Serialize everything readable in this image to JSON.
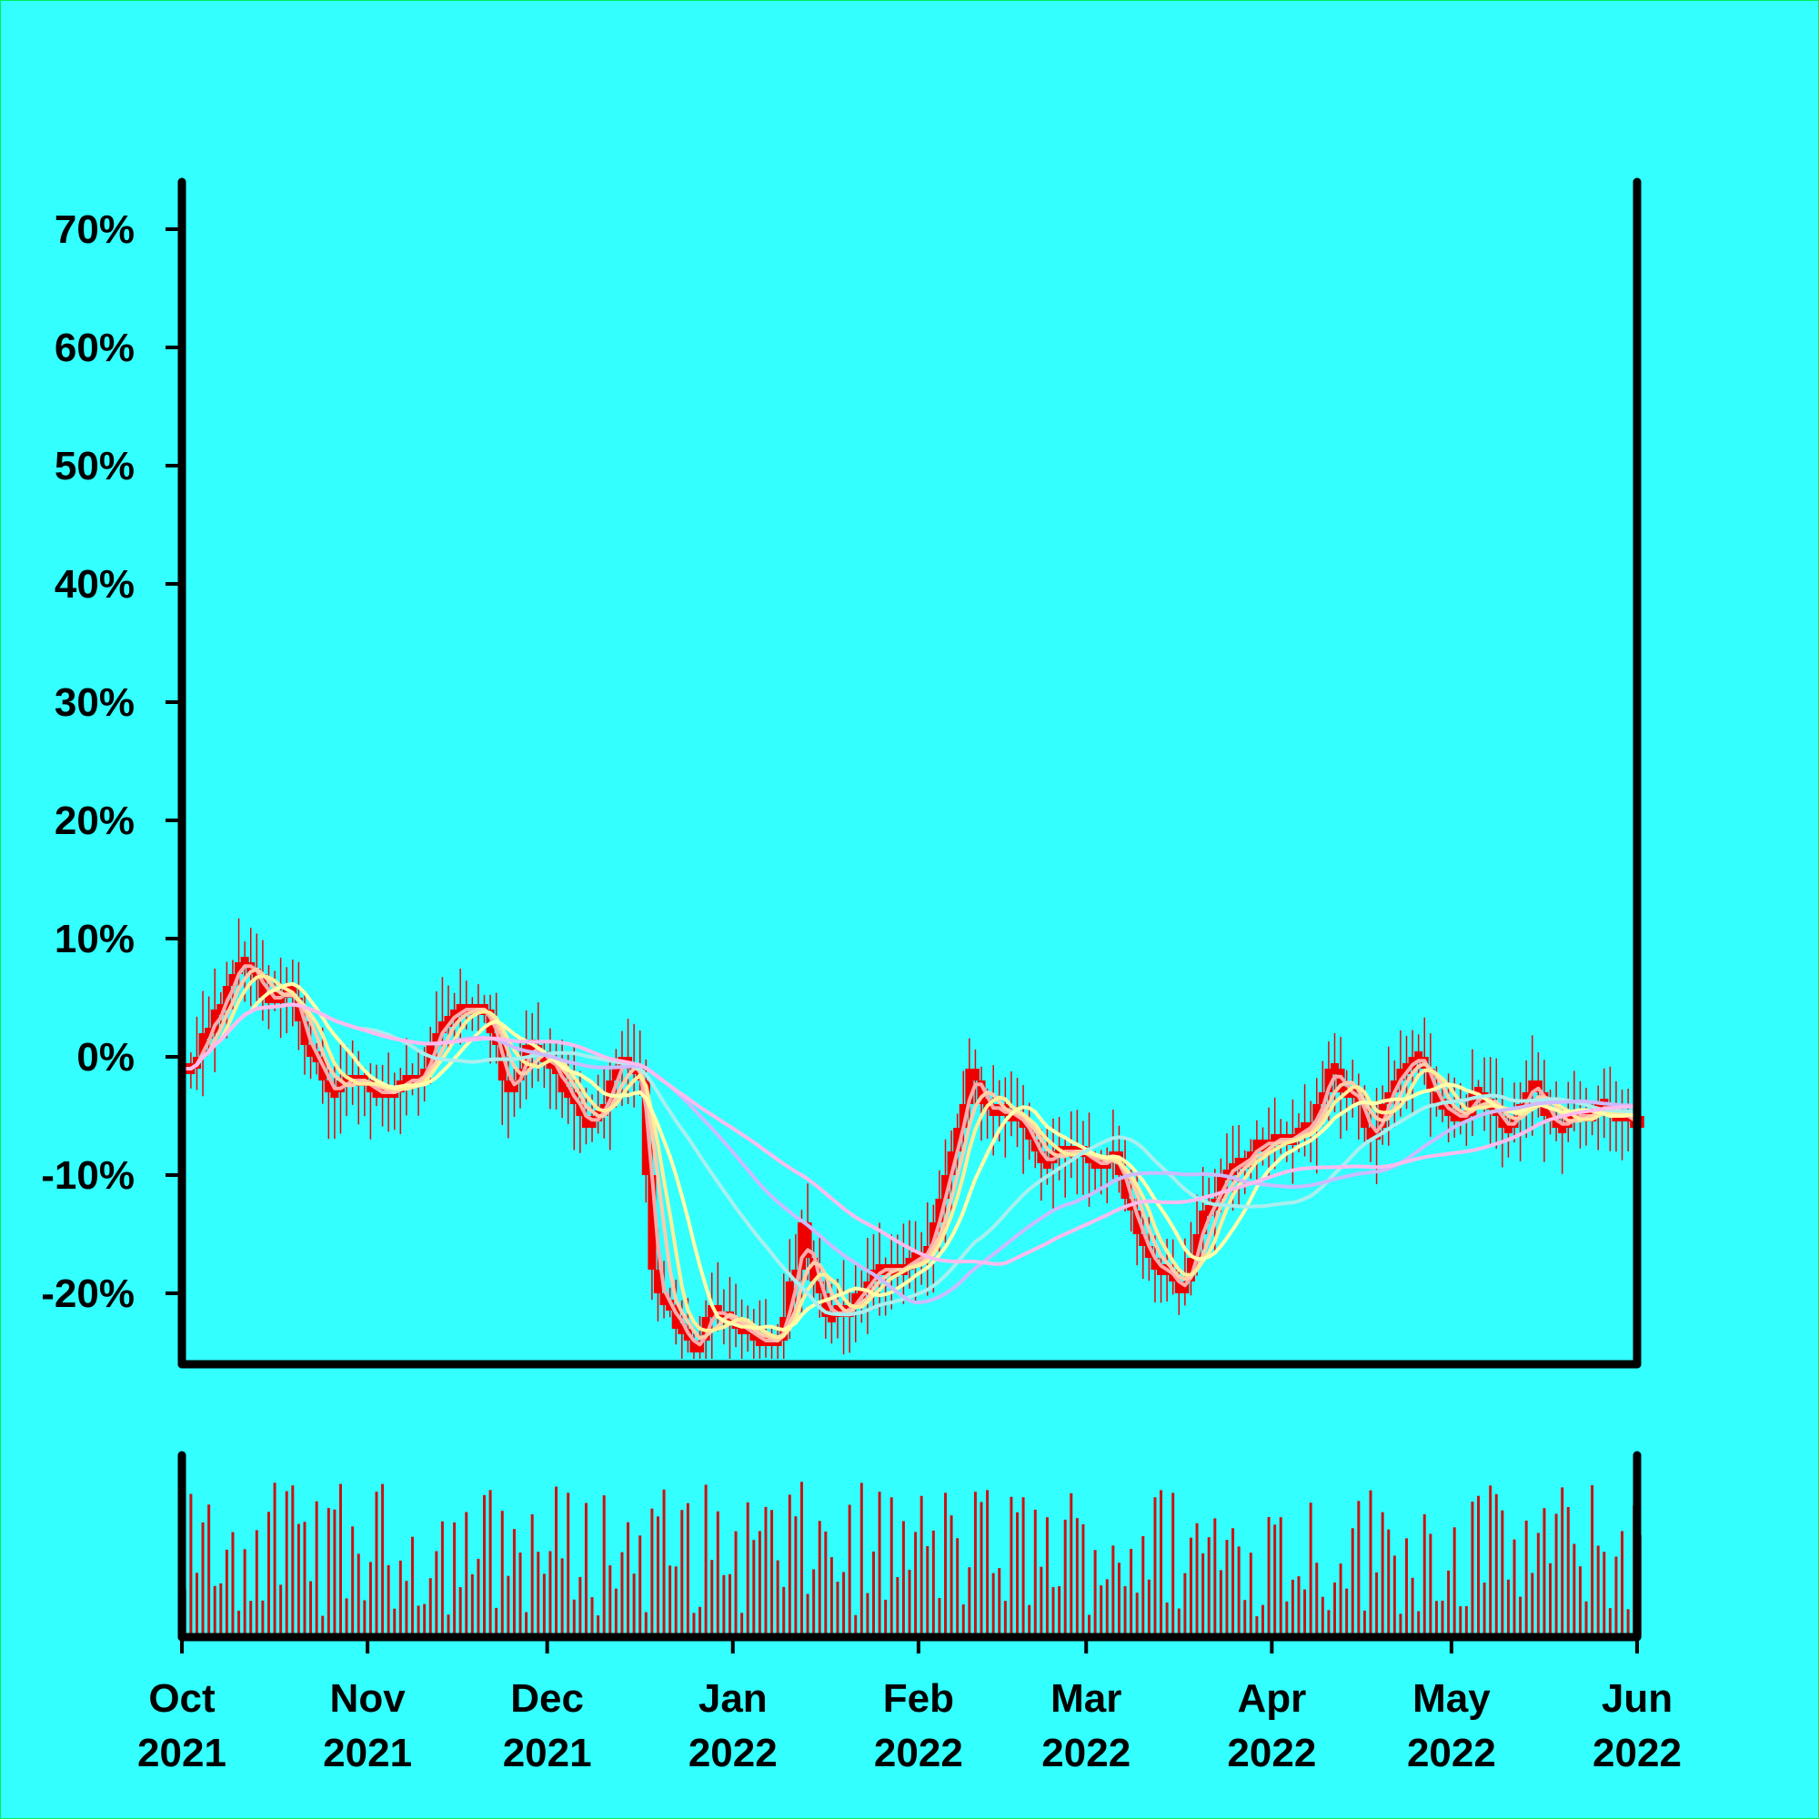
{
  "colors": {
    "background": "#33ffff",
    "border": "#00ee55",
    "axis": "#000000",
    "candle": "#ee0000",
    "volume": "#cc1111"
  },
  "chart_data": {
    "type": "candlestick",
    "title": "",
    "xlabel": "",
    "ylabel": "",
    "y_axis_format": "percent",
    "ylim": [
      -26,
      74
    ],
    "y_ticks": [
      "70%",
      "60%",
      "50%",
      "40%",
      "30%",
      "20%",
      "10%",
      "0%",
      "-10%",
      "-20%"
    ],
    "y_tick_values": [
      70,
      60,
      50,
      40,
      30,
      20,
      10,
      0,
      -10,
      -20
    ],
    "xlim": [
      "2021-10-01",
      "2022-06-01"
    ],
    "x_ticks": [
      {
        "date": "2021-10-01",
        "month": "Oct",
        "year": "2021"
      },
      {
        "date": "2021-11-01",
        "month": "Nov",
        "year": "2021"
      },
      {
        "date": "2021-12-01",
        "month": "Dec",
        "year": "2021"
      },
      {
        "date": "2022-01-01",
        "month": "Jan",
        "year": "2022"
      },
      {
        "date": "2022-02-01",
        "month": "Feb",
        "year": "2022"
      },
      {
        "date": "2022-03-01",
        "month": "Mar",
        "year": "2022"
      },
      {
        "date": "2022-04-01",
        "month": "Apr",
        "year": "2022"
      },
      {
        "date": "2022-05-01",
        "month": "May",
        "year": "2022"
      },
      {
        "date": "2022-06-01",
        "month": "Jun",
        "year": "2022"
      }
    ],
    "price_anchors": [
      {
        "date": "2021-10-01",
        "value": -1
      },
      {
        "date": "2021-10-04",
        "value": 1
      },
      {
        "date": "2021-10-08",
        "value": 6
      },
      {
        "date": "2021-10-11",
        "value": 8
      },
      {
        "date": "2021-10-15",
        "value": 5
      },
      {
        "date": "2021-10-18",
        "value": 6
      },
      {
        "date": "2021-10-22",
        "value": 0
      },
      {
        "date": "2021-10-26",
        "value": -3
      },
      {
        "date": "2021-10-31",
        "value": -2
      },
      {
        "date": "2021-11-04",
        "value": -3
      },
      {
        "date": "2021-11-09",
        "value": -2
      },
      {
        "date": "2021-11-13",
        "value": 3
      },
      {
        "date": "2021-11-17",
        "value": 4
      },
      {
        "date": "2021-11-20",
        "value": 4
      },
      {
        "date": "2021-11-24",
        "value": -3
      },
      {
        "date": "2021-11-28",
        "value": 1
      },
      {
        "date": "2021-12-03",
        "value": -2
      },
      {
        "date": "2021-12-07",
        "value": -6
      },
      {
        "date": "2021-12-10",
        "value": -4
      },
      {
        "date": "2021-12-13",
        "value": 0
      },
      {
        "date": "2021-12-16",
        "value": -2
      },
      {
        "date": "2021-12-18",
        "value": -18
      },
      {
        "date": "2021-12-21",
        "value": -22
      },
      {
        "date": "2021-12-25",
        "value": -25
      },
      {
        "date": "2021-12-28",
        "value": -21
      },
      {
        "date": "2022-01-01",
        "value": -23
      },
      {
        "date": "2022-01-05",
        "value": -24
      },
      {
        "date": "2022-01-08",
        "value": -24
      },
      {
        "date": "2022-01-12",
        "value": -15
      },
      {
        "date": "2022-01-16",
        "value": -22
      },
      {
        "date": "2022-01-20",
        "value": -21
      },
      {
        "date": "2022-01-24",
        "value": -18
      },
      {
        "date": "2022-01-28",
        "value": -19
      },
      {
        "date": "2022-02-02",
        "value": -16
      },
      {
        "date": "2022-02-06",
        "value": -8
      },
      {
        "date": "2022-02-09",
        "value": -2
      },
      {
        "date": "2022-02-12",
        "value": -4
      },
      {
        "date": "2022-02-17",
        "value": -5
      },
      {
        "date": "2022-02-21",
        "value": -9
      },
      {
        "date": "2022-02-25",
        "value": -8
      },
      {
        "date": "2022-03-01",
        "value": -9
      },
      {
        "date": "2022-03-05",
        "value": -8
      },
      {
        "date": "2022-03-09",
        "value": -15
      },
      {
        "date": "2022-03-13",
        "value": -18
      },
      {
        "date": "2022-03-16",
        "value": -20
      },
      {
        "date": "2022-03-19",
        "value": -15
      },
      {
        "date": "2022-03-23",
        "value": -10
      },
      {
        "date": "2022-03-28",
        "value": -8
      },
      {
        "date": "2022-04-02",
        "value": -7
      },
      {
        "date": "2022-04-07",
        "value": -6
      },
      {
        "date": "2022-04-10",
        "value": -1
      },
      {
        "date": "2022-04-14",
        "value": -3
      },
      {
        "date": "2022-04-17",
        "value": -7
      },
      {
        "date": "2022-04-21",
        "value": -2
      },
      {
        "date": "2022-04-24",
        "value": 0
      },
      {
        "date": "2022-04-28",
        "value": -4
      },
      {
        "date": "2022-05-02",
        "value": -5
      },
      {
        "date": "2022-05-06",
        "value": -3
      },
      {
        "date": "2022-05-10",
        "value": -6
      },
      {
        "date": "2022-05-14",
        "value": -3
      },
      {
        "date": "2022-05-18",
        "value": -6
      },
      {
        "date": "2022-05-22",
        "value": -5
      },
      {
        "date": "2022-05-26",
        "value": -4
      },
      {
        "date": "2022-05-31",
        "value": -6
      }
    ],
    "moving_averages": [
      {
        "color": "#ffaaaa",
        "period": 3
      },
      {
        "color": "#ffccaa",
        "period": 5
      },
      {
        "color": "#ffee99",
        "period": 7
      },
      {
        "color": "#ffffaa",
        "period": 12
      },
      {
        "color": "#aaeeee",
        "period": 30
      },
      {
        "color": "#ccbbff",
        "period": 45
      },
      {
        "color": "#ffbbee",
        "period": 60
      }
    ],
    "volume_panel": {
      "shown": true
    }
  }
}
